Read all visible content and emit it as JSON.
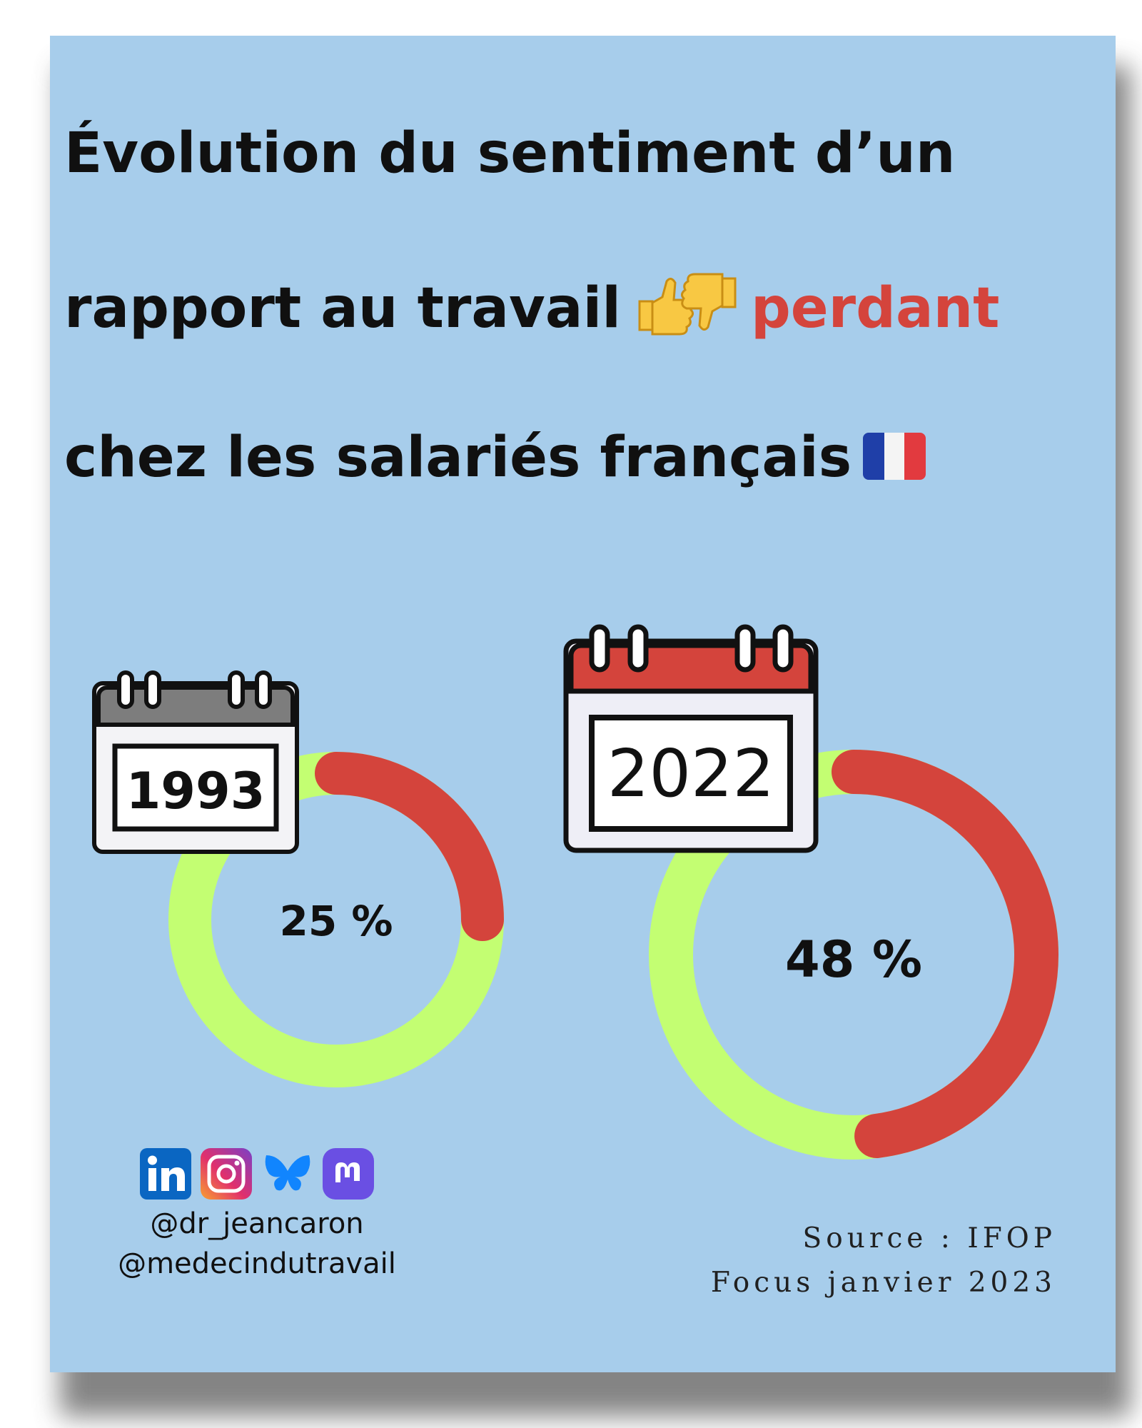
{
  "title": {
    "line1": "Évolution du sentiment d’un",
    "line2_prefix": "rapport au travail",
    "line2_accent": "perdant",
    "line3": "chez les salariés français"
  },
  "colors": {
    "background": "#a7cdeb",
    "losing": "#d4443c",
    "rest": "#c3fe72",
    "title": "#101010"
  },
  "chart_data": {
    "type": "pie",
    "subtype": "donut",
    "series": [
      {
        "name": "1993",
        "value": 25,
        "label": "25 %"
      },
      {
        "name": "2022",
        "value": 48,
        "label": "48 %"
      }
    ],
    "unit": "%"
  },
  "socials": {
    "icons": [
      "linkedin-icon",
      "instagram-icon",
      "bluesky-icon",
      "mastodon-icon"
    ],
    "handle1": "@dr_jeancaron",
    "handle2": "@medecindutravail"
  },
  "source": {
    "line1": "Source : IFOP",
    "line2": "Focus janvier 2023"
  }
}
